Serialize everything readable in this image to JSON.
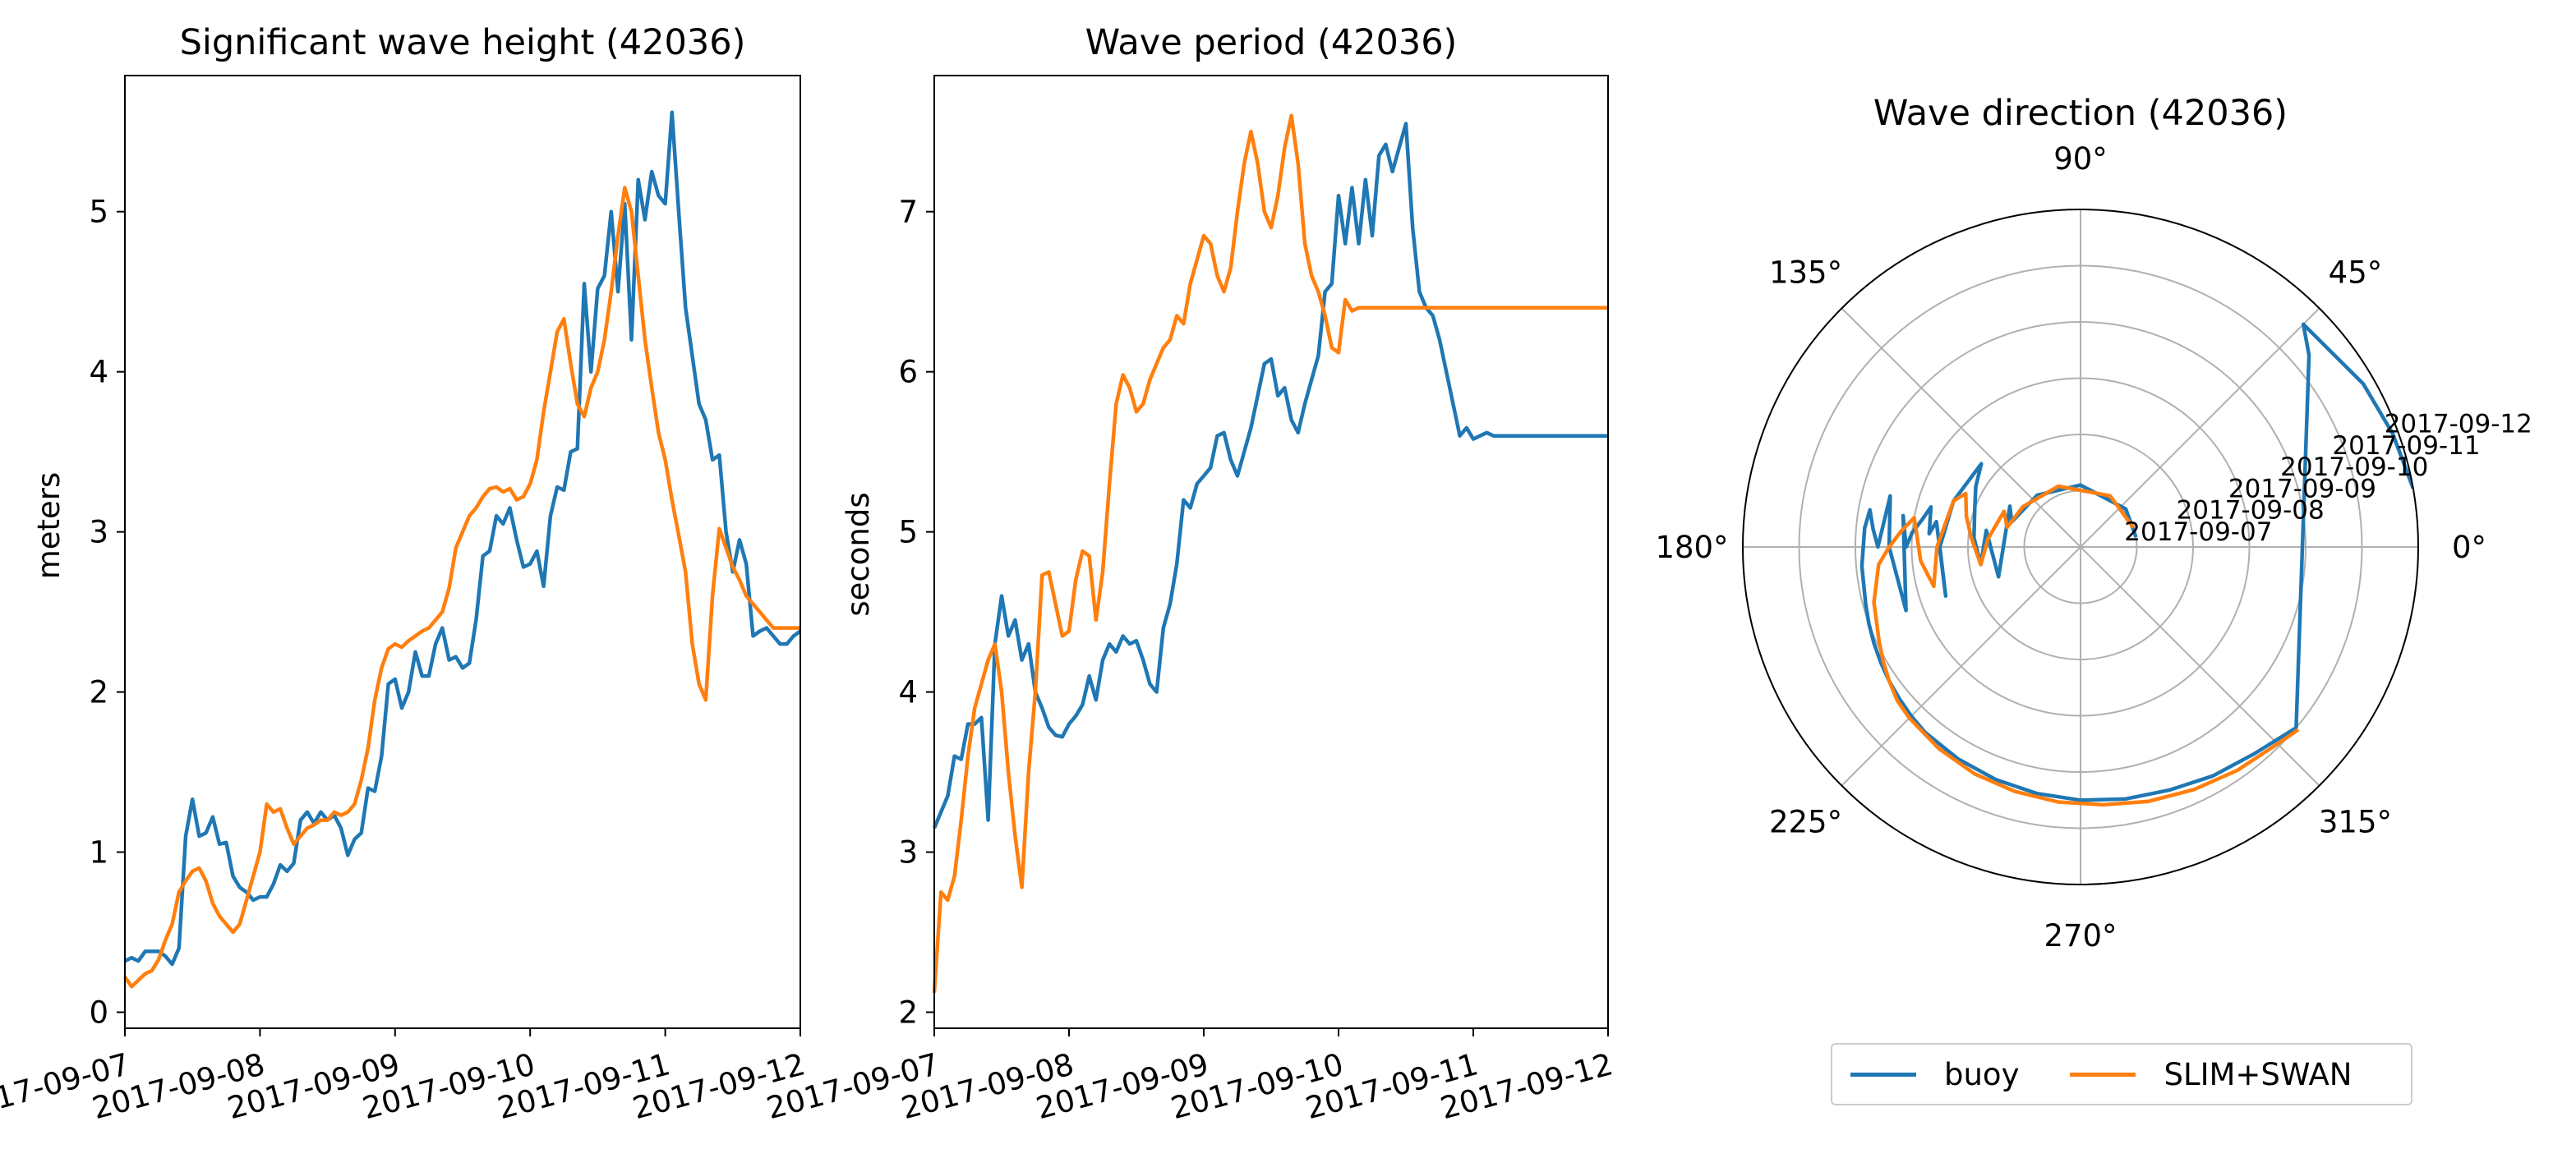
{
  "colors": {
    "buoy": "#1f77b4",
    "model": "#ff7f0e",
    "grid": "#b0b0b0"
  },
  "legend": {
    "placement": "bottom-center",
    "items": [
      "buoy",
      "SLIM+SWAN"
    ]
  },
  "chart_data": [
    {
      "type": "line",
      "title": "Significant wave height (42036)",
      "xlabel": "",
      "ylabel": "meters",
      "xlim": [
        "2017-09-07",
        "2017-09-12"
      ],
      "ylim": [
        -0.1,
        5.85
      ],
      "yticks": [
        "0",
        "1",
        "2",
        "3",
        "4",
        "5"
      ],
      "xticks": [
        "2017-09-07",
        "2017-09-08",
        "2017-09-09",
        "2017-09-10",
        "2017-09-11",
        "2017-09-12"
      ],
      "x": [
        0,
        0.05,
        0.1,
        0.15,
        0.2,
        0.25,
        0.3,
        0.35,
        0.4,
        0.45,
        0.5,
        0.55,
        0.6,
        0.65,
        0.7,
        0.75,
        0.8,
        0.85,
        0.9,
        0.95,
        1.0,
        1.05,
        1.1,
        1.15,
        1.2,
        1.25,
        1.3,
        1.35,
        1.4,
        1.45,
        1.5,
        1.55,
        1.6,
        1.65,
        1.7,
        1.75,
        1.8,
        1.85,
        1.9,
        1.95,
        2.0,
        2.05,
        2.1,
        2.15,
        2.2,
        2.25,
        2.3,
        2.35,
        2.4,
        2.45,
        2.5,
        2.55,
        2.6,
        2.65,
        2.7,
        2.75,
        2.8,
        2.85,
        2.9,
        2.95,
        3.0,
        3.05,
        3.1,
        3.15,
        3.2,
        3.25,
        3.3,
        3.35,
        3.4,
        3.45,
        3.5,
        3.55,
        3.6,
        3.65,
        3.7,
        3.75,
        3.8,
        3.85,
        3.9,
        3.95,
        4.0,
        4.05,
        4.1,
        4.15,
        4.2,
        4.25,
        4.3,
        4.35,
        4.4,
        4.45,
        4.5,
        4.55,
        4.6,
        4.65,
        4.7,
        4.75,
        4.8,
        4.85,
        4.9,
        4.95,
        5.0
      ],
      "series": [
        {
          "name": "buoy",
          "values": [
            0.32,
            0.34,
            0.32,
            0.38,
            0.38,
            0.38,
            0.35,
            0.3,
            0.4,
            1.1,
            1.33,
            1.1,
            1.12,
            1.22,
            1.05,
            1.06,
            0.85,
            0.78,
            0.75,
            0.7,
            0.72,
            0.72,
            0.8,
            0.92,
            0.88,
            0.93,
            1.2,
            1.25,
            1.18,
            1.25,
            1.2,
            1.23,
            1.15,
            0.98,
            1.08,
            1.12,
            1.4,
            1.38,
            1.6,
            2.05,
            2.08,
            1.9,
            2.0,
            2.25,
            2.1,
            2.1,
            2.3,
            2.4,
            2.2,
            2.22,
            2.15,
            2.18,
            2.45,
            2.85,
            2.88,
            3.1,
            3.05,
            3.15,
            2.95,
            2.78,
            2.8,
            2.88,
            2.66,
            3.1,
            3.28,
            3.26,
            3.5,
            3.52,
            4.55,
            4.0,
            4.52,
            4.6,
            5.0,
            4.5,
            5.05,
            4.2,
            5.2,
            4.95,
            5.25,
            5.1,
            5.05,
            5.62,
            5.0,
            4.4,
            4.1,
            3.8,
            3.7,
            3.45,
            3.48,
            3.0,
            2.75,
            2.95,
            2.8,
            2.35,
            2.38,
            2.4,
            2.35,
            2.3,
            2.3,
            2.35,
            2.38
          ]
        },
        {
          "name": "SLIM+SWAN",
          "values": [
            0.22,
            0.16,
            0.2,
            0.24,
            0.26,
            0.33,
            0.45,
            0.55,
            0.75,
            0.82,
            0.88,
            0.9,
            0.82,
            0.68,
            0.6,
            0.55,
            0.5,
            0.55,
            0.7,
            0.85,
            1.0,
            1.3,
            1.25,
            1.27,
            1.15,
            1.05,
            1.1,
            1.15,
            1.17,
            1.2,
            1.2,
            1.25,
            1.23,
            1.25,
            1.3,
            1.45,
            1.65,
            1.95,
            2.15,
            2.27,
            2.3,
            2.28,
            2.32,
            2.35,
            2.38,
            2.4,
            2.45,
            2.5,
            2.65,
            2.9,
            3.0,
            3.1,
            3.15,
            3.22,
            3.27,
            3.28,
            3.25,
            3.27,
            3.2,
            3.22,
            3.3,
            3.45,
            3.75,
            4.0,
            4.25,
            4.33,
            4.05,
            3.8,
            3.72,
            3.9,
            4.0,
            4.2,
            4.5,
            4.85,
            5.15,
            5.0,
            4.6,
            4.2,
            3.9,
            3.62,
            3.45,
            3.2,
            2.98,
            2.75,
            2.3,
            2.05,
            1.95,
            2.6,
            3.02,
            2.9,
            2.78,
            2.7,
            2.6,
            2.55,
            2.5,
            2.45,
            2.4,
            2.4,
            2.4,
            2.4,
            2.4
          ]
        }
      ]
    },
    {
      "type": "line",
      "title": "Wave period (42036)",
      "xlabel": "",
      "ylabel": "seconds",
      "xlim": [
        "2017-09-07",
        "2017-09-12"
      ],
      "ylim": [
        1.9,
        7.85
      ],
      "yticks": [
        "2",
        "3",
        "4",
        "5",
        "6",
        "7"
      ],
      "xticks": [
        "2017-09-07",
        "2017-09-08",
        "2017-09-09",
        "2017-09-10",
        "2017-09-11",
        "2017-09-12"
      ],
      "x": [
        0,
        0.05,
        0.1,
        0.15,
        0.2,
        0.25,
        0.3,
        0.35,
        0.4,
        0.45,
        0.5,
        0.55,
        0.6,
        0.65,
        0.7,
        0.75,
        0.8,
        0.85,
        0.9,
        0.95,
        1.0,
        1.05,
        1.1,
        1.15,
        1.2,
        1.25,
        1.3,
        1.35,
        1.4,
        1.45,
        1.5,
        1.55,
        1.6,
        1.65,
        1.7,
        1.75,
        1.8,
        1.85,
        1.9,
        1.95,
        2.0,
        2.05,
        2.1,
        2.15,
        2.2,
        2.25,
        2.3,
        2.35,
        2.4,
        2.45,
        2.5,
        2.55,
        2.6,
        2.65,
        2.7,
        2.75,
        2.8,
        2.85,
        2.9,
        2.95,
        3.0,
        3.05,
        3.1,
        3.15,
        3.2,
        3.25,
        3.3,
        3.35,
        3.4,
        3.45,
        3.5,
        3.55,
        3.6,
        3.65,
        3.7,
        3.75,
        3.8,
        3.85,
        3.9,
        3.95,
        4.0,
        4.05,
        4.1,
        4.15,
        4.2,
        4.25,
        4.3,
        4.35,
        4.4,
        4.45,
        4.5,
        4.55,
        4.6,
        4.65,
        4.7,
        4.75,
        4.8,
        4.85,
        4.9,
        4.95,
        5.0
      ],
      "series": [
        {
          "name": "buoy",
          "values": [
            3.15,
            3.25,
            3.35,
            3.6,
            3.58,
            3.8,
            3.8,
            3.84,
            3.2,
            4.3,
            4.6,
            4.35,
            4.45,
            4.2,
            4.3,
            4.0,
            3.9,
            3.78,
            3.73,
            3.72,
            3.8,
            3.85,
            3.92,
            4.1,
            3.95,
            4.2,
            4.3,
            4.25,
            4.35,
            4.3,
            4.32,
            4.2,
            4.05,
            4.0,
            4.4,
            4.55,
            4.8,
            5.2,
            5.15,
            5.3,
            5.35,
            5.4,
            5.6,
            5.62,
            5.45,
            5.35,
            5.5,
            5.65,
            5.85,
            6.05,
            6.08,
            5.85,
            5.9,
            5.7,
            5.62,
            5.8,
            5.95,
            6.1,
            6.5,
            6.55,
            7.1,
            6.8,
            7.15,
            6.8,
            7.2,
            6.85,
            7.35,
            7.42,
            7.25,
            7.4,
            7.55,
            6.9,
            6.5,
            6.4,
            6.35,
            6.2,
            6.0,
            5.8,
            5.6,
            5.65,
            5.58,
            5.6,
            5.62,
            5.6,
            5.6,
            5.6,
            5.6,
            5.6,
            5.6,
            5.6,
            5.6,
            5.6,
            5.6,
            5.6,
            5.6,
            5.6,
            5.6,
            5.6,
            5.6,
            5.6,
            5.6
          ]
        },
        {
          "name": "SLIM+SWAN",
          "values": [
            2.12,
            2.75,
            2.7,
            2.85,
            3.2,
            3.6,
            3.9,
            4.05,
            4.2,
            4.3,
            4.0,
            3.5,
            3.1,
            2.78,
            3.5,
            4.0,
            4.73,
            4.75,
            4.55,
            4.35,
            4.38,
            4.7,
            4.88,
            4.85,
            4.45,
            4.75,
            5.3,
            5.8,
            5.98,
            5.9,
            5.75,
            5.8,
            5.95,
            6.05,
            6.15,
            6.2,
            6.35,
            6.3,
            6.55,
            6.7,
            6.85,
            6.8,
            6.6,
            6.5,
            6.65,
            7.0,
            7.3,
            7.5,
            7.3,
            7.0,
            6.9,
            7.1,
            7.4,
            7.6,
            7.3,
            6.8,
            6.6,
            6.5,
            6.35,
            6.15,
            6.12,
            6.45,
            6.38,
            6.4,
            6.4,
            6.4,
            6.4,
            6.4,
            6.4,
            6.4,
            6.4,
            6.4,
            6.4,
            6.4,
            6.4,
            6.4,
            6.4,
            6.4,
            6.4,
            6.4,
            6.4,
            6.4,
            6.4,
            6.4,
            6.4,
            6.4,
            6.4,
            6.4,
            6.4,
            6.4,
            6.4,
            6.4,
            6.4,
            6.4,
            6.4,
            6.4,
            6.4,
            6.4,
            6.4,
            6.4,
            6.4
          ]
        }
      ]
    },
    {
      "type": "polar-line",
      "title": "Wave direction (42036)",
      "theta_unit": "degrees",
      "theta_ticks": [
        "0°",
        "45°",
        "90°",
        "135°",
        "180°",
        "225°",
        "270°",
        "315°"
      ],
      "r_ticks": [
        "2017-09-07",
        "2017-09-08",
        "2017-09-09",
        "2017-09-10",
        "2017-09-11",
        "2017-09-12"
      ],
      "r_range": [
        "2017-09-06",
        "2017-09-12"
      ],
      "series": [
        {
          "name": "buoy",
          "theta": [
            10,
            40,
            90,
            130,
            160,
            150,
            200,
            170,
            190,
            175,
            160,
            150,
            140,
            160,
            180,
            200,
            170,
            175,
            165,
            170,
            175,
            180,
            170,
            200,
            180,
            165,
            180,
            175,
            170,
            175,
            185,
            195,
            200,
            205,
            210,
            215,
            220,
            225,
            230,
            240,
            250,
            260,
            270,
            280,
            290,
            300,
            310,
            320,
            40,
            45,
            30,
            20,
            10
          ],
          "r": [
            1.0,
            1.05,
            1.1,
            1.2,
            1.3,
            1.45,
            1.55,
            1.7,
            1.8,
            1.9,
            2.0,
            2.15,
            2.3,
            2.4,
            2.5,
            2.55,
            2.6,
            2.7,
            2.75,
            2.85,
            3.0,
            3.1,
            3.2,
            3.3,
            3.4,
            3.5,
            3.6,
            3.7,
            3.8,
            3.85,
            3.9,
            3.95,
            4.0,
            4.05,
            4.1,
            4.15,
            4.2,
            4.25,
            4.3,
            4.35,
            4.4,
            4.45,
            4.5,
            4.55,
            4.6,
            4.7,
            4.8,
            5.0,
            5.3,
            5.6,
            5.8,
            5.9,
            6.0
          ]
        },
        {
          "name": "SLIM+SWAN",
          "theta": [
            20,
            60,
            110,
            145,
            165,
            155,
            175,
            190,
            175,
            165,
            155,
            160,
            180,
            195,
            185,
            170,
            175,
            180,
            185,
            195,
            205,
            210,
            215,
            220,
            225,
            235,
            245,
            255,
            265,
            275,
            285,
            295,
            305,
            315,
            320
          ],
          "r": [
            1.0,
            1.05,
            1.15,
            1.25,
            1.35,
            1.5,
            1.65,
            1.8,
            1.95,
            2.1,
            2.25,
            2.4,
            2.55,
            2.7,
            2.85,
            3.0,
            3.2,
            3.4,
            3.6,
            3.8,
            3.95,
            4.05,
            4.15,
            4.25,
            4.3,
            4.38,
            4.45,
            4.5,
            4.55,
            4.6,
            4.68,
            4.76,
            4.85,
            4.95,
            5.05
          ]
        }
      ]
    }
  ]
}
